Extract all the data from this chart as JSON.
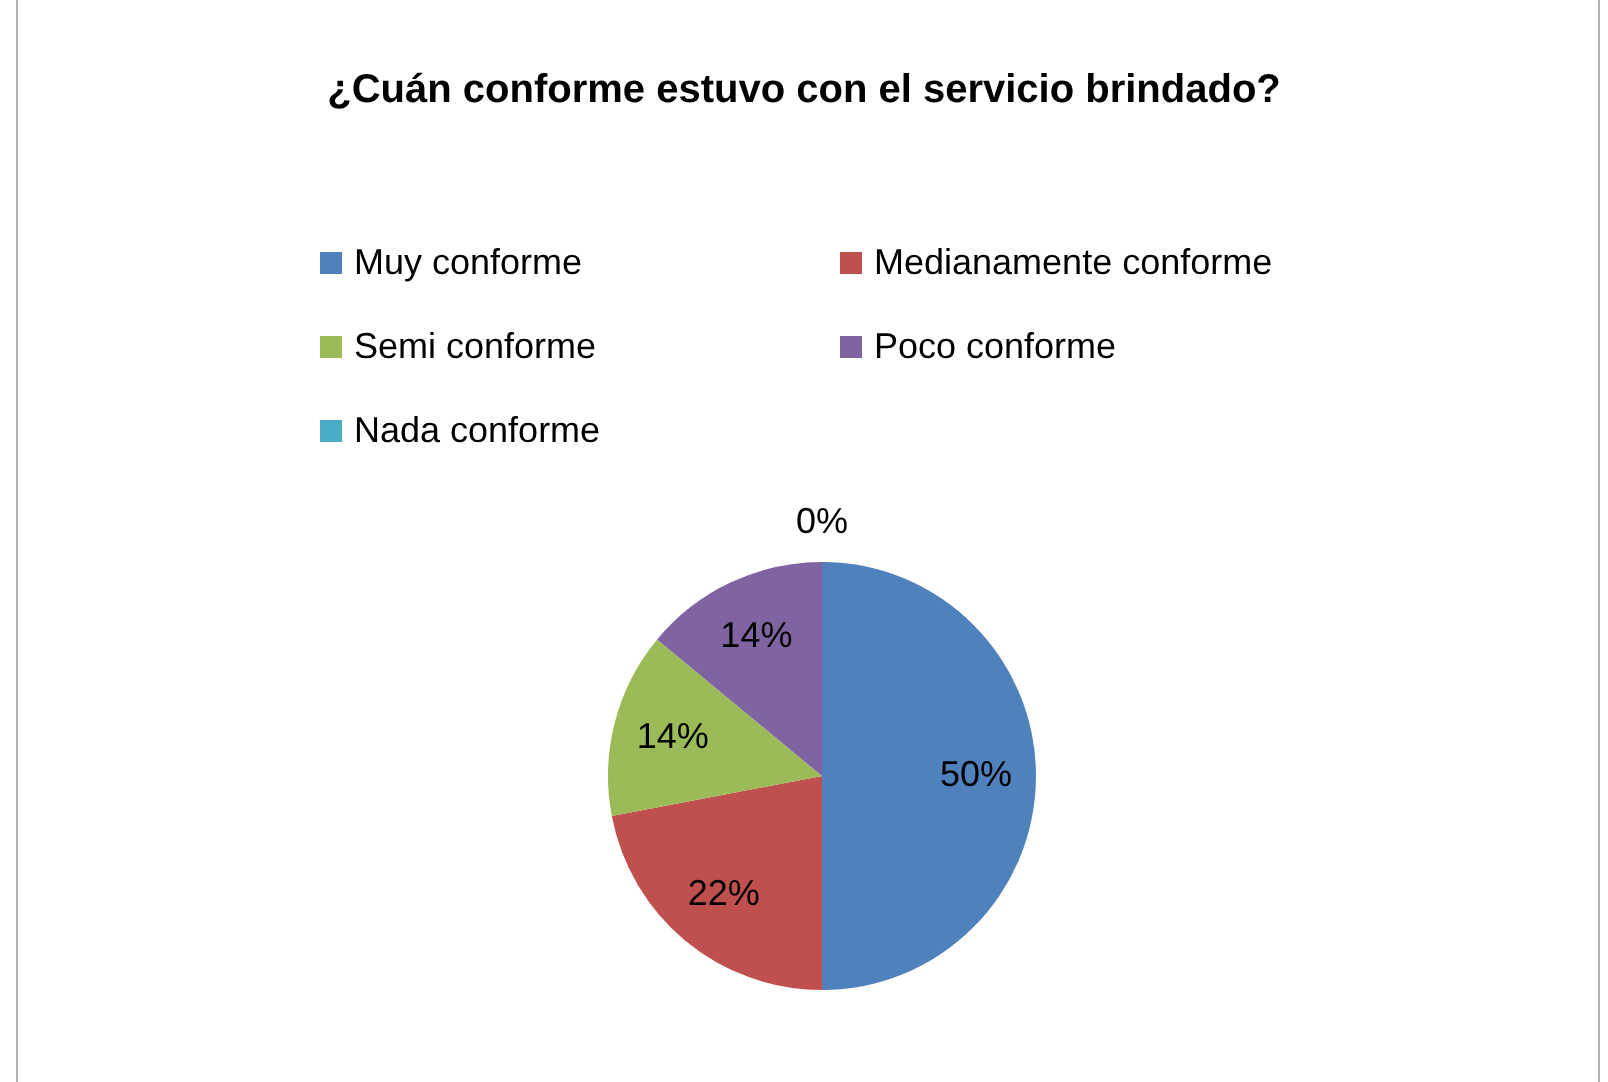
{
  "chart_data": {
    "type": "pie",
    "title": "¿Cuán conforme estuvo con el servicio brindado?",
    "categories": [
      "Muy conforme",
      "Medianamente conforme",
      "Semi conforme",
      "Poco conforme",
      "Nada conforme"
    ],
    "values": [
      50,
      22,
      14,
      14,
      0
    ],
    "colors": [
      "#4f81bd",
      "#c0504d",
      "#9bbb59",
      "#8064a2",
      "#4bacc6"
    ],
    "value_labels": [
      "50%",
      "22%",
      "14%",
      "14%",
      "0%"
    ],
    "legend": "top"
  }
}
